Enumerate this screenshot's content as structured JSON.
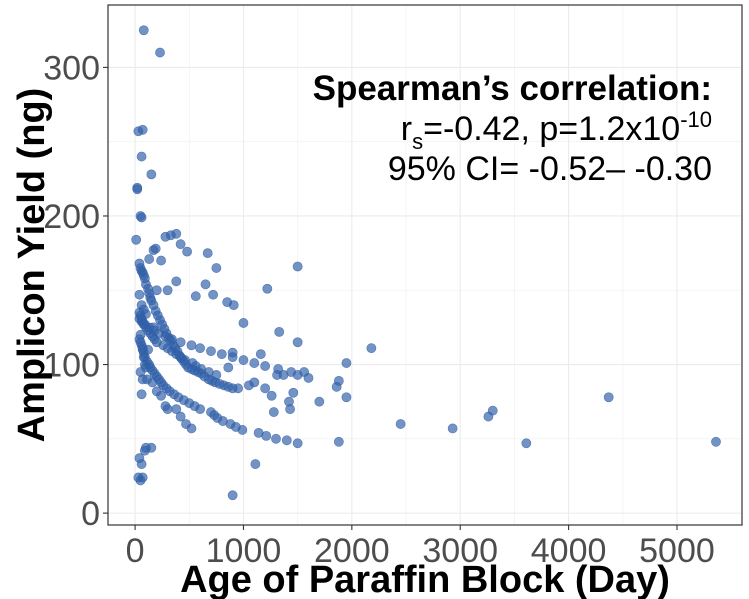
{
  "chart_data": {
    "type": "scatter",
    "xlabel": "Age of Paraffin Block (Day)",
    "ylabel": "Amplicon Yield (ng)",
    "xlim": [
      -250,
      5600
    ],
    "ylim": [
      -8,
      342
    ],
    "x_ticks": [
      0,
      1000,
      2000,
      3000,
      4000,
      5000
    ],
    "y_ticks": [
      0,
      100,
      200,
      300
    ],
    "grid": true,
    "point_color": "#3060a8",
    "annotation": {
      "heading": "Spearman’s correlation:",
      "r_symbol": "r",
      "r_subscript": "s",
      "r_text": "=-0.42, p=1.2x10",
      "p_exponent": "-10",
      "ci_text": "95% CI= -0.52– -0.30"
    },
    "x": [
      80,
      230,
      30,
      70,
      150,
      60,
      20,
      20,
      50,
      60,
      10,
      130,
      170,
      190,
      280,
      330,
      380,
      420,
      480,
      670,
      750,
      1220,
      1500,
      300,
      380,
      560,
      650,
      720,
      850,
      910,
      1000,
      1330,
      40,
      50,
      60,
      70,
      80,
      90,
      100,
      120,
      130,
      140,
      150,
      170,
      190,
      210,
      230,
      250,
      270,
      290,
      310,
      330,
      350,
      370,
      390,
      410,
      430,
      450,
      470,
      490,
      520,
      550,
      580,
      610,
      640,
      680,
      710,
      740,
      780,
      820,
      860,
      900,
      950,
      1050,
      1100,
      1160,
      1200,
      1260,
      1310,
      1370,
      1420,
      1460,
      1500,
      1560,
      1700,
      1860,
      1950,
      2180,
      1280,
      1430,
      40,
      50,
      60,
      70,
      80,
      90,
      110,
      130,
      140,
      160,
      180,
      200,
      220,
      240,
      260,
      290,
      320,
      360,
      400,
      450,
      500,
      550,
      600,
      700,
      730,
      760,
      810,
      880,
      930,
      990,
      1140,
      1210,
      1300,
      1400,
      1500,
      1880,
      1950,
      2450,
      2930,
      3260,
      3300,
      3610,
      4370,
      5360,
      40,
      60,
      80,
      100,
      120,
      140,
      160,
      180,
      200,
      260,
      300,
      340,
      380,
      420,
      460,
      530,
      560,
      610,
      680,
      750,
      40,
      50,
      60,
      70,
      90,
      130,
      180,
      220,
      280,
      340,
      420,
      520,
      600,
      700,
      800,
      900,
      1000,
      1100,
      1200,
      1320,
      1440,
      1500,
      1600,
      1880,
      900,
      1110,
      40,
      60,
      70,
      100,
      30,
      50,
      90,
      150,
      50,
      70,
      90,
      110,
      60,
      80,
      100,
      40,
      60,
      80,
      100,
      50,
      70,
      120,
      160,
      200,
      240,
      280,
      300,
      380,
      420,
      470,
      520,
      900,
      860,
      240,
      200,
      170
    ],
    "y": [
      325,
      310,
      257,
      258,
      228,
      240,
      219,
      218,
      200,
      199,
      184,
      171,
      177,
      178,
      186,
      187,
      188,
      181,
      176,
      175,
      165,
      151,
      166,
      150,
      156,
      146,
      154,
      147,
      142,
      140,
      128,
      122,
      168,
      165,
      163,
      162,
      160,
      158,
      154,
      151,
      148,
      145,
      143,
      140,
      136,
      133,
      130,
      127,
      124,
      121,
      118,
      116,
      113,
      111,
      109,
      106,
      104,
      102,
      100,
      98,
      97,
      96,
      95,
      94,
      92,
      90,
      89,
      88,
      87,
      86,
      85,
      84,
      84,
      86,
      88,
      107,
      84,
      79,
      93,
      93,
      75,
      81,
      115,
      95,
      75,
      85,
      78,
      111,
      68,
      70,
      117,
      115,
      113,
      111,
      108,
      105,
      102,
      100,
      98,
      96,
      94,
      92,
      90,
      88,
      86,
      84,
      82,
      80,
      78,
      76,
      74,
      72,
      70,
      68,
      66,
      64,
      62,
      60,
      58,
      56,
      54,
      52,
      50,
      49,
      47,
      48,
      101,
      60,
      57,
      65,
      69,
      47,
      78,
      48,
      131,
      129,
      127,
      125,
      123,
      121,
      119,
      117,
      115,
      113,
      111,
      109,
      107,
      105,
      103,
      101,
      99,
      97,
      95,
      93,
      135,
      133,
      131,
      129,
      127,
      125,
      123,
      121,
      119,
      117,
      115,
      113,
      111,
      109,
      107,
      105,
      103,
      101,
      99,
      97,
      95,
      93,
      91,
      89,
      12,
      33,
      37,
      33,
      24,
      44,
      24,
      22,
      42,
      44,
      120,
      110,
      100,
      90,
      80,
      105,
      98,
      147,
      140,
      137,
      134,
      95,
      90,
      110,
      88,
      82,
      79,
      72,
      70,
      70,
      65,
      60,
      57,
      108,
      98,
      170,
      150,
      125
    ]
  }
}
